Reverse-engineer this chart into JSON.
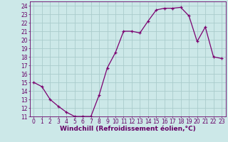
{
  "x": [
    0,
    1,
    2,
    3,
    4,
    5,
    6,
    7,
    8,
    9,
    10,
    11,
    12,
    13,
    14,
    15,
    16,
    17,
    18,
    19,
    20,
    21,
    22,
    23
  ],
  "y": [
    15,
    14.5,
    13,
    12.2,
    11.5,
    11,
    11,
    11,
    13.5,
    16.7,
    18.5,
    21,
    21,
    20.8,
    22.2,
    23.5,
    23.7,
    23.7,
    23.8,
    22.8,
    19.8,
    21.5,
    18,
    17.8
  ],
  "line_color": "#7B0070",
  "marker": "+",
  "bg_color": "#cce8e8",
  "grid_color": "#aacccc",
  "xlabel": "Windchill (Refroidissement éolien,°C)",
  "ylim": [
    11,
    24.5
  ],
  "xlim": [
    -0.5,
    23.5
  ],
  "yticks": [
    11,
    12,
    13,
    14,
    15,
    16,
    17,
    18,
    19,
    20,
    21,
    22,
    23,
    24
  ],
  "xticks": [
    0,
    1,
    2,
    3,
    4,
    5,
    6,
    7,
    8,
    9,
    10,
    11,
    12,
    13,
    14,
    15,
    16,
    17,
    18,
    19,
    20,
    21,
    22,
    23
  ],
  "tick_color": "#660066",
  "label_color": "#660066",
  "axis_color": "#660066",
  "xlabel_fontsize": 6.5,
  "ytick_fontsize": 5.5,
  "xtick_fontsize": 5.5,
  "linewidth": 0.9,
  "markersize": 3.5
}
